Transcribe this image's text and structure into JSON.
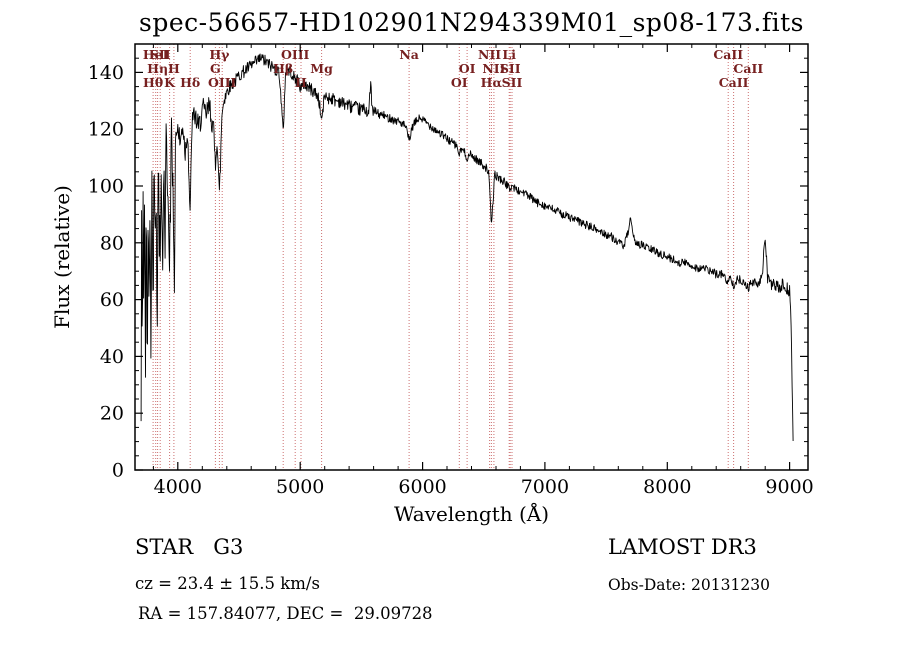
{
  "title": "spec-56657-HD102901N294339M01_sp08-173.fits",
  "chart_data": {
    "type": "line",
    "title": "spec-56657-HD102901N294339M01_sp08-173.fits",
    "xlabel": "Wavelength (Å)",
    "ylabel": "Flux (relative)",
    "xlim": [
      3650,
      9150
    ],
    "ylim": [
      0,
      150
    ],
    "xticks": [
      4000,
      5000,
      6000,
      7000,
      8000,
      9000
    ],
    "yticks": [
      0,
      20,
      40,
      60,
      80,
      100,
      120,
      140
    ],
    "x_minor_step": 200,
    "y_minor_step": 5,
    "grid": false,
    "line_color": "#000000",
    "spectral_line_color": "#cc7070",
    "spectral_label_color": "#772020",
    "spectrum_keypoints": [
      [
        3700,
        15
      ],
      [
        3703,
        90
      ],
      [
        3710,
        45
      ],
      [
        3715,
        95
      ],
      [
        3722,
        60
      ],
      [
        3728,
        100
      ],
      [
        3735,
        35
      ],
      [
        3742,
        95
      ],
      [
        3750,
        35
      ],
      [
        3758,
        100
      ],
      [
        3765,
        55
      ],
      [
        3772,
        98
      ],
      [
        3780,
        45
      ],
      [
        3788,
        100
      ],
      [
        3798,
        60
      ],
      [
        3805,
        105
      ],
      [
        3815,
        70
      ],
      [
        3822,
        108
      ],
      [
        3830,
        50
      ],
      [
        3840,
        100
      ],
      [
        3850,
        110
      ],
      [
        3856,
        75
      ],
      [
        3865,
        112
      ],
      [
        3875,
        60
      ],
      [
        3885,
        110
      ],
      [
        3895,
        80
      ],
      [
        3905,
        115
      ],
      [
        3920,
        100
      ],
      [
        3933,
        70
      ],
      [
        3945,
        118
      ],
      [
        3958,
        105
      ],
      [
        3968,
        80
      ],
      [
        3980,
        118
      ],
      [
        4000,
        120
      ],
      [
        4020,
        115
      ],
      [
        4040,
        122
      ],
      [
        4060,
        112
      ],
      [
        4080,
        120
      ],
      [
        4101,
        88
      ],
      [
        4115,
        122
      ],
      [
        4140,
        125
      ],
      [
        4170,
        120
      ],
      [
        4200,
        127
      ],
      [
        4230,
        125
      ],
      [
        4260,
        128
      ],
      [
        4290,
        120
      ],
      [
        4307,
        108
      ],
      [
        4320,
        118
      ],
      [
        4340,
        96
      ],
      [
        4360,
        125
      ],
      [
        4380,
        132
      ],
      [
        4410,
        134
      ],
      [
        4440,
        136
      ],
      [
        4470,
        137
      ],
      [
        4500,
        139
      ],
      [
        4530,
        140
      ],
      [
        4560,
        141
      ],
      [
        4590,
        142
      ],
      [
        4620,
        143
      ],
      [
        4650,
        144
      ],
      [
        4680,
        145
      ],
      [
        4710,
        144
      ],
      [
        4740,
        143
      ],
      [
        4770,
        142
      ],
      [
        4800,
        141
      ],
      [
        4830,
        140
      ],
      [
        4861,
        118
      ],
      [
        4880,
        140
      ],
      [
        4900,
        141
      ],
      [
        4930,
        140
      ],
      [
        4959,
        137
      ],
      [
        4980,
        138
      ],
      [
        5007,
        134
      ],
      [
        5030,
        136
      ],
      [
        5060,
        135
      ],
      [
        5090,
        134
      ],
      [
        5120,
        133
      ],
      [
        5150,
        131
      ],
      [
        5175,
        123
      ],
      [
        5200,
        132
      ],
      [
        5230,
        131
      ],
      [
        5260,
        131
      ],
      [
        5290,
        130
      ],
      [
        5320,
        130
      ],
      [
        5350,
        129
      ],
      [
        5380,
        129
      ],
      [
        5410,
        128
      ],
      [
        5440,
        128
      ],
      [
        5470,
        127
      ],
      [
        5500,
        127
      ],
      [
        5530,
        127
      ],
      [
        5560,
        126
      ],
      [
        5577,
        136
      ],
      [
        5590,
        126
      ],
      [
        5620,
        126
      ],
      [
        5650,
        125
      ],
      [
        5680,
        125
      ],
      [
        5710,
        124
      ],
      [
        5740,
        124
      ],
      [
        5770,
        123
      ],
      [
        5800,
        123
      ],
      [
        5830,
        122
      ],
      [
        5860,
        121
      ],
      [
        5890,
        116
      ],
      [
        5920,
        121
      ],
      [
        5950,
        123
      ],
      [
        5980,
        124
      ],
      [
        6010,
        123
      ],
      [
        6040,
        122
      ],
      [
        6070,
        121
      ],
      [
        6100,
        120
      ],
      [
        6130,
        119
      ],
      [
        6160,
        118
      ],
      [
        6190,
        117
      ],
      [
        6220,
        116
      ],
      [
        6250,
        115
      ],
      [
        6280,
        114
      ],
      [
        6300,
        111
      ],
      [
        6320,
        113
      ],
      [
        6340,
        112
      ],
      [
        6364,
        110
      ],
      [
        6390,
        111
      ],
      [
        6420,
        110
      ],
      [
        6450,
        109
      ],
      [
        6480,
        108
      ],
      [
        6510,
        107
      ],
      [
        6540,
        105
      ],
      [
        6563,
        86
      ],
      [
        6590,
        104
      ],
      [
        6620,
        103
      ],
      [
        6650,
        102
      ],
      [
        6680,
        101
      ],
      [
        6708,
        99
      ],
      [
        6730,
        100
      ],
      [
        6760,
        99
      ],
      [
        6790,
        98
      ],
      [
        6820,
        98
      ],
      [
        6850,
        97
      ],
      [
        6880,
        96
      ],
      [
        6910,
        95
      ],
      [
        6940,
        94
      ],
      [
        6970,
        94
      ],
      [
        7000,
        93
      ],
      [
        7050,
        92
      ],
      [
        7100,
        91
      ],
      [
        7150,
        90
      ],
      [
        7200,
        89
      ],
      [
        7250,
        88
      ],
      [
        7300,
        87
      ],
      [
        7350,
        86
      ],
      [
        7400,
        85
      ],
      [
        7450,
        84
      ],
      [
        7500,
        83
      ],
      [
        7550,
        82
      ],
      [
        7600,
        80
      ],
      [
        7650,
        79
      ],
      [
        7680,
        84
      ],
      [
        7700,
        88
      ],
      [
        7720,
        82
      ],
      [
        7750,
        80
      ],
      [
        7800,
        79
      ],
      [
        7850,
        78
      ],
      [
        7900,
        77
      ],
      [
        7950,
        76
      ],
      [
        8000,
        75
      ],
      [
        8050,
        74
      ],
      [
        8100,
        73
      ],
      [
        8150,
        73
      ],
      [
        8200,
        72
      ],
      [
        8250,
        71
      ],
      [
        8300,
        71
      ],
      [
        8350,
        70
      ],
      [
        8400,
        69
      ],
      [
        8450,
        69
      ],
      [
        8498,
        66
      ],
      [
        8520,
        68
      ],
      [
        8542,
        65
      ],
      [
        8570,
        67
      ],
      [
        8600,
        67
      ],
      [
        8630,
        66
      ],
      [
        8662,
        64
      ],
      [
        8690,
        66
      ],
      [
        8720,
        66
      ],
      [
        8750,
        65
      ],
      [
        8780,
        70
      ],
      [
        8800,
        83
      ],
      [
        8820,
        68
      ],
      [
        8850,
        65
      ],
      [
        8880,
        65
      ],
      [
        8910,
        64
      ],
      [
        8940,
        65
      ],
      [
        8970,
        64
      ],
      [
        9000,
        63
      ],
      [
        9010,
        55
      ],
      [
        9020,
        30
      ],
      [
        9030,
        5
      ]
    ],
    "spectral_lines": [
      {
        "wavelength": 3798,
        "label": "Hθ",
        "row": 3
      },
      {
        "wavelength": 3819,
        "label": "HeI",
        "row": 1
      },
      {
        "wavelength": 3835,
        "label": "Hη",
        "row": 2
      },
      {
        "wavelength": 3856,
        "label": "SII",
        "row": 1
      },
      {
        "wavelength": 3933,
        "label": "K",
        "row": 3
      },
      {
        "wavelength": 3968,
        "label": "H",
        "row": 2
      },
      {
        "wavelength": 4101,
        "label": "Hδ",
        "row": 3
      },
      {
        "wavelength": 4307,
        "label": "G",
        "row": 2
      },
      {
        "wavelength": 4340,
        "label": "Hγ",
        "row": 1
      },
      {
        "wavelength": 4363,
        "label": "OIII",
        "row": 3
      },
      {
        "wavelength": 4861,
        "label": "Hβ",
        "row": 2
      },
      {
        "wavelength": 4959,
        "label": "OIII",
        "row": 1
      },
      {
        "wavelength": 5007,
        "label": "II",
        "row": 3
      },
      {
        "wavelength": 5175,
        "label": "Mg",
        "row": 2
      },
      {
        "wavelength": 5890,
        "label": "Na",
        "row": 1
      },
      {
        "wavelength": 6300,
        "label": "OI",
        "row": 3
      },
      {
        "wavelength": 6364,
        "label": "OI",
        "row": 2
      },
      {
        "wavelength": 6548,
        "label": "NII",
        "row": 1
      },
      {
        "wavelength": 6563,
        "label": "Hα",
        "row": 3
      },
      {
        "wavelength": 6583,
        "label": "NII",
        "row": 2
      },
      {
        "wavelength": 6708,
        "label": "Li",
        "row": 1
      },
      {
        "wavelength": 6716,
        "label": "SII",
        "row": 2
      },
      {
        "wavelength": 6731,
        "label": "SII",
        "row": 3
      },
      {
        "wavelength": 8498,
        "label": "CaII",
        "row": 1
      },
      {
        "wavelength": 8542,
        "label": "CaII",
        "row": 3
      },
      {
        "wavelength": 8662,
        "label": "CaII",
        "row": 2
      }
    ]
  },
  "footer": {
    "left": {
      "line1": "STAR   G3",
      "line2": "cz = 23.4 ± 15.5 km/s",
      "line3": "RA = 157.84077, DEC =  29.09728"
    },
    "right": {
      "line1": "LAMOST DR3",
      "line2": "Obs-Date: 20131230"
    }
  }
}
